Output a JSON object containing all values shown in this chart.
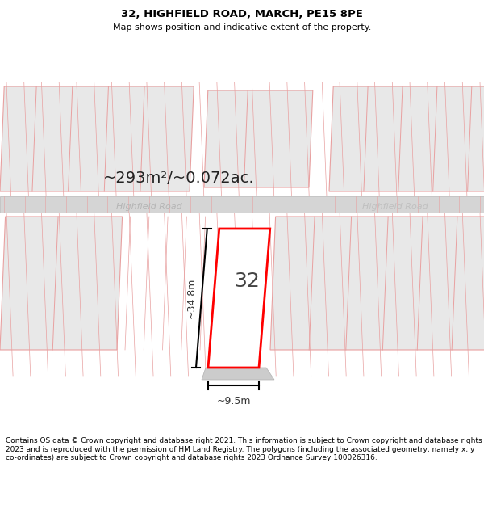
{
  "title": "32, HIGHFIELD ROAD, MARCH, PE15 8PE",
  "subtitle": "Map shows position and indicative extent of the property.",
  "copyright": "Contains OS data © Crown copyright and database right 2021. This information is subject to Crown copyright and database rights 2023 and is reproduced with the permission of HM Land Registry. The polygons (including the associated geometry, namely x, y co-ordinates) are subject to Crown copyright and database rights 2023 Ordnance Survey 100026316.",
  "area_text": "~293m²/~0.072ac.",
  "road_label_left": "Highfield Road",
  "road_label_right": "Highfield Road",
  "dim_height": "~34.8m",
  "dim_width": "~9.5m",
  "property_label": "32",
  "map_bg": "#ffffff",
  "road_color": "#d8d8d8",
  "building_fill": "#e8e8e8",
  "building_stroke": "#e8a0a0",
  "property_fill": "#ffffff",
  "property_stroke": "#ff0000",
  "title_fontsize": 9,
  "subtitle_fontsize": 8,
  "copyright_fontsize": 6.5
}
